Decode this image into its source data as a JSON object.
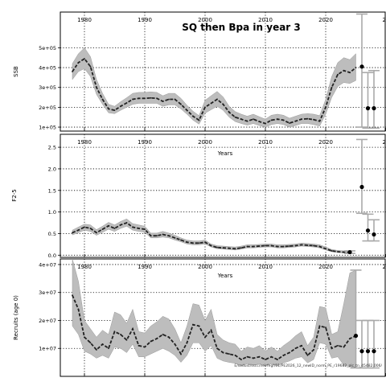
{
  "chart_data": [
    {
      "type": "line",
      "title": "SQ then Bpa in year 3",
      "ylabel": "SSB",
      "xlabel": "Years",
      "xlim": [
        1976,
        2030
      ],
      "ylim": [
        80000,
        680000
      ],
      "x_ticks": [
        "1980",
        "1990",
        "2000",
        "2010",
        "2020",
        "20"
      ],
      "x_tick_values": [
        1980,
        1990,
        2000,
        2010,
        2020,
        2030
      ],
      "y_ticks": [
        "1e+05",
        "2e+05",
        "3e+05",
        "4e+05",
        "5e+05"
      ],
      "y_tick_values": [
        100000,
        200000,
        300000,
        400000,
        500000
      ],
      "grid": true,
      "x": [
        1978,
        1979,
        1980,
        1981,
        1982,
        1983,
        1984,
        1985,
        1986,
        1987,
        1988,
        1989,
        1990,
        1991,
        1992,
        1993,
        1994,
        1995,
        1996,
        1997,
        1998,
        1999,
        2000,
        2001,
        2002,
        2003,
        2004,
        2005,
        2006,
        2007,
        2008,
        2009,
        2010,
        2011,
        2012,
        2013,
        2014,
        2015,
        2016,
        2017,
        2018,
        2019,
        2020,
        2021,
        2022,
        2023,
        2024,
        2025
      ],
      "median": [
        380000,
        425000,
        445000,
        405000,
        300000,
        240000,
        192000,
        185000,
        205000,
        222000,
        240000,
        245000,
        245000,
        247000,
        245000,
        230000,
        240000,
        240000,
        215000,
        185000,
        155000,
        135000,
        200000,
        220000,
        240000,
        215000,
        175000,
        150000,
        140000,
        130000,
        140000,
        128000,
        118000,
        135000,
        140000,
        135000,
        120000,
        130000,
        140000,
        142000,
        138000,
        130000,
        200000,
        300000,
        365000,
        385000,
        375000,
        400000
      ],
      "lower": [
        340000,
        380000,
        395000,
        355000,
        265000,
        215000,
        172000,
        168000,
        185000,
        200000,
        215000,
        220000,
        220000,
        220000,
        220000,
        205000,
        212000,
        212000,
        192000,
        165000,
        135000,
        115000,
        170000,
        188000,
        205000,
        185000,
        150000,
        128000,
        118000,
        110000,
        118000,
        108000,
        100000,
        113000,
        118000,
        113000,
        100000,
        108000,
        118000,
        118000,
        113000,
        105000,
        165000,
        250000,
        305000,
        325000,
        320000,
        335000
      ],
      "upper": [
        420000,
        470000,
        500000,
        455000,
        340000,
        270000,
        215000,
        205000,
        228000,
        248000,
        270000,
        275000,
        275000,
        278000,
        275000,
        258000,
        270000,
        270000,
        245000,
        210000,
        180000,
        158000,
        235000,
        258000,
        280000,
        252000,
        205000,
        178000,
        165000,
        155000,
        165000,
        152000,
        140000,
        160000,
        165000,
        160000,
        145000,
        155000,
        165000,
        168000,
        165000,
        158000,
        240000,
        355000,
        425000,
        450000,
        440000,
        470000
      ],
      "projections": [
        {
          "x": 2026,
          "median": 405000,
          "lower": 100000,
          "upper": 670000
        },
        {
          "x": 2027,
          "median": 195000,
          "lower": 95000,
          "upper": 375000
        },
        {
          "x": 2028,
          "median": 195000,
          "lower": 95000,
          "upper": 385000
        }
      ],
      "colors": {
        "band": "#bdbdbd",
        "line": "#222222",
        "errorbar": "#aaaaaa",
        "grid": "#000000"
      }
    },
    {
      "type": "line",
      "ylabel": "F2-5",
      "xlabel": "Years",
      "xlim": [
        1976,
        2030
      ],
      "ylim": [
        -0.05,
        2.8
      ],
      "x_ticks": [
        "1980",
        "1990",
        "2000",
        "2010",
        "2020",
        "20"
      ],
      "x_tick_values": [
        1980,
        1990,
        2000,
        2010,
        2020,
        2030
      ],
      "y_ticks": [
        "0.0",
        "0.5",
        "1.0",
        "1.5",
        "2.0",
        "2.5"
      ],
      "y_tick_values": [
        0.0,
        0.5,
        1.0,
        1.5,
        2.0,
        2.5
      ],
      "grid": true,
      "x": [
        1978,
        1979,
        1980,
        1981,
        1982,
        1983,
        1984,
        1985,
        1986,
        1987,
        1988,
        1989,
        1990,
        1991,
        1992,
        1993,
        1994,
        1995,
        1996,
        1997,
        1998,
        1999,
        2000,
        2001,
        2002,
        2003,
        2004,
        2005,
        2006,
        2007,
        2008,
        2009,
        2010,
        2011,
        2012,
        2013,
        2014,
        2015,
        2016,
        2017,
        2018,
        2019,
        2020,
        2021,
        2022,
        2023,
        2024
      ],
      "median": [
        0.52,
        0.58,
        0.65,
        0.62,
        0.52,
        0.6,
        0.68,
        0.62,
        0.7,
        0.75,
        0.65,
        0.62,
        0.6,
        0.45,
        0.45,
        0.48,
        0.45,
        0.4,
        0.35,
        0.3,
        0.28,
        0.28,
        0.3,
        0.22,
        0.18,
        0.17,
        0.16,
        0.15,
        0.17,
        0.2,
        0.2,
        0.21,
        0.22,
        0.22,
        0.2,
        0.2,
        0.21,
        0.22,
        0.24,
        0.23,
        0.22,
        0.2,
        0.15,
        0.1,
        0.08,
        0.07,
        0.06
      ],
      "lower": [
        0.47,
        0.52,
        0.58,
        0.55,
        0.46,
        0.53,
        0.6,
        0.55,
        0.62,
        0.67,
        0.58,
        0.55,
        0.53,
        0.4,
        0.4,
        0.42,
        0.4,
        0.35,
        0.31,
        0.26,
        0.24,
        0.24,
        0.26,
        0.19,
        0.15,
        0.14,
        0.13,
        0.12,
        0.14,
        0.17,
        0.17,
        0.18,
        0.19,
        0.19,
        0.17,
        0.17,
        0.18,
        0.19,
        0.21,
        0.2,
        0.19,
        0.17,
        0.12,
        0.08,
        0.06,
        0.05,
        0.04
      ],
      "upper": [
        0.58,
        0.65,
        0.72,
        0.7,
        0.59,
        0.67,
        0.76,
        0.7,
        0.78,
        0.84,
        0.73,
        0.7,
        0.67,
        0.51,
        0.51,
        0.55,
        0.51,
        0.46,
        0.4,
        0.35,
        0.33,
        0.33,
        0.35,
        0.26,
        0.22,
        0.21,
        0.2,
        0.19,
        0.21,
        0.24,
        0.24,
        0.25,
        0.26,
        0.26,
        0.24,
        0.24,
        0.25,
        0.26,
        0.28,
        0.27,
        0.26,
        0.24,
        0.19,
        0.13,
        0.11,
        0.1,
        0.09
      ],
      "projections": [
        {
          "x": 2024,
          "median": 0.07,
          "lower": 0.04,
          "upper": 0.1
        },
        {
          "x": 2026,
          "median": 1.58,
          "lower": 0.97,
          "upper": 2.68
        },
        {
          "x": 2027,
          "median": 0.57,
          "lower": 0.33,
          "upper": 0.95
        },
        {
          "x": 2028,
          "median": 0.48,
          "lower": 0.33,
          "upper": 0.82
        }
      ],
      "colors": {
        "band": "#bdbdbd",
        "line": "#222222",
        "errorbar": "#aaaaaa",
        "grid": "#000000"
      }
    },
    {
      "type": "line",
      "ylabel": "Recruits (age 0)",
      "xlabel": "Years",
      "xlim": [
        1976,
        2030
      ],
      "ylim": [
        0,
        42000000
      ],
      "x_ticks": [
        "1980",
        "1990",
        "2000",
        "2010",
        "2020",
        "20"
      ],
      "x_tick_values": [
        1980,
        1990,
        2000,
        2010,
        2020,
        2030
      ],
      "y_ticks": [
        "1e+07",
        "2e+07",
        "3e+07",
        "4e+07"
      ],
      "y_tick_values": [
        10000000,
        20000000,
        30000000,
        40000000
      ],
      "grid": true,
      "x": [
        1978,
        1979,
        1980,
        1981,
        1982,
        1983,
        1984,
        1985,
        1986,
        1987,
        1988,
        1989,
        1990,
        1991,
        1992,
        1993,
        1994,
        1995,
        1996,
        1997,
        1998,
        1999,
        2000,
        2001,
        2002,
        2003,
        2004,
        2005,
        2006,
        2007,
        2008,
        2009,
        2010,
        2011,
        2012,
        2013,
        2014,
        2015,
        2016,
        2017,
        2018,
        2019,
        2020,
        2021,
        2022,
        2023,
        2024,
        2025
      ],
      "median": [
        29000000,
        24000000,
        14000000,
        12000000,
        9500000,
        11500000,
        10000000,
        16000000,
        15000000,
        13000000,
        17000000,
        11000000,
        10500000,
        12500000,
        13500000,
        15000000,
        14000000,
        11500000,
        8000000,
        12000000,
        18500000,
        18000000,
        14000000,
        16500000,
        10000000,
        8500000,
        8000000,
        7500000,
        6000000,
        7000000,
        6500000,
        7000000,
        6000000,
        7000000,
        6000000,
        7500000,
        8500000,
        10000000,
        11000000,
        7500000,
        9500000,
        18000000,
        17500000,
        10000000,
        11000000,
        10500000,
        13500000,
        14500000
      ],
      "lower": [
        18000000,
        15000000,
        9000000,
        8000000,
        6500000,
        7500000,
        6500000,
        10500000,
        10000000,
        8500000,
        11500000,
        7000000,
        7000000,
        8000000,
        9000000,
        10000000,
        9000000,
        7500000,
        5000000,
        7500000,
        12000000,
        12000000,
        9000000,
        11000000,
        6500000,
        5500000,
        5000000,
        4700000,
        3800000,
        4500000,
        4000000,
        4500000,
        3800000,
        4500000,
        3800000,
        4800000,
        5500000,
        6500000,
        7000000,
        4800000,
        6000000,
        12000000,
        11500000,
        6500000,
        7000000,
        4000000,
        3500000,
        3000000
      ],
      "upper": [
        42000000,
        34000000,
        20000000,
        17000000,
        14000000,
        16500000,
        15000000,
        23000000,
        22000000,
        19000000,
        24000000,
        16000000,
        15500000,
        18000000,
        19500000,
        21500000,
        20500000,
        17000000,
        12000000,
        18000000,
        26000000,
        25500000,
        20000000,
        24000000,
        15000000,
        13000000,
        12000000,
        11500000,
        9000000,
        10500000,
        10000000,
        11000000,
        9000000,
        10500000,
        9000000,
        11000000,
        12500000,
        14500000,
        16000000,
        11000000,
        14000000,
        25000000,
        24500000,
        15000000,
        16000000,
        26000000,
        37000000,
        38000000
      ],
      "projections": [
        {
          "x": 2025,
          "median": 14500000,
          "lower": 3000000,
          "upper": 38000000
        },
        {
          "x": 2026,
          "median": 9000000,
          "lower": 3000000,
          "upper": 20000000
        },
        {
          "x": 2027,
          "median": 9000000,
          "lower": 3000000,
          "upper": 20000000
        },
        {
          "x": 2028,
          "median": 9000000,
          "lower": 3000000,
          "upper": 20000000
        }
      ],
      "colors": {
        "band": "#bdbdbd",
        "line": "#222222",
        "errorbar": "#aaaaaa",
        "grid": "#000000"
      }
    }
  ],
  "footnote": "E/sodust/sscc/neirfegf/01/PE2026_12_newID_norm_PE_r19682_plc_tn_45482.006/"
}
